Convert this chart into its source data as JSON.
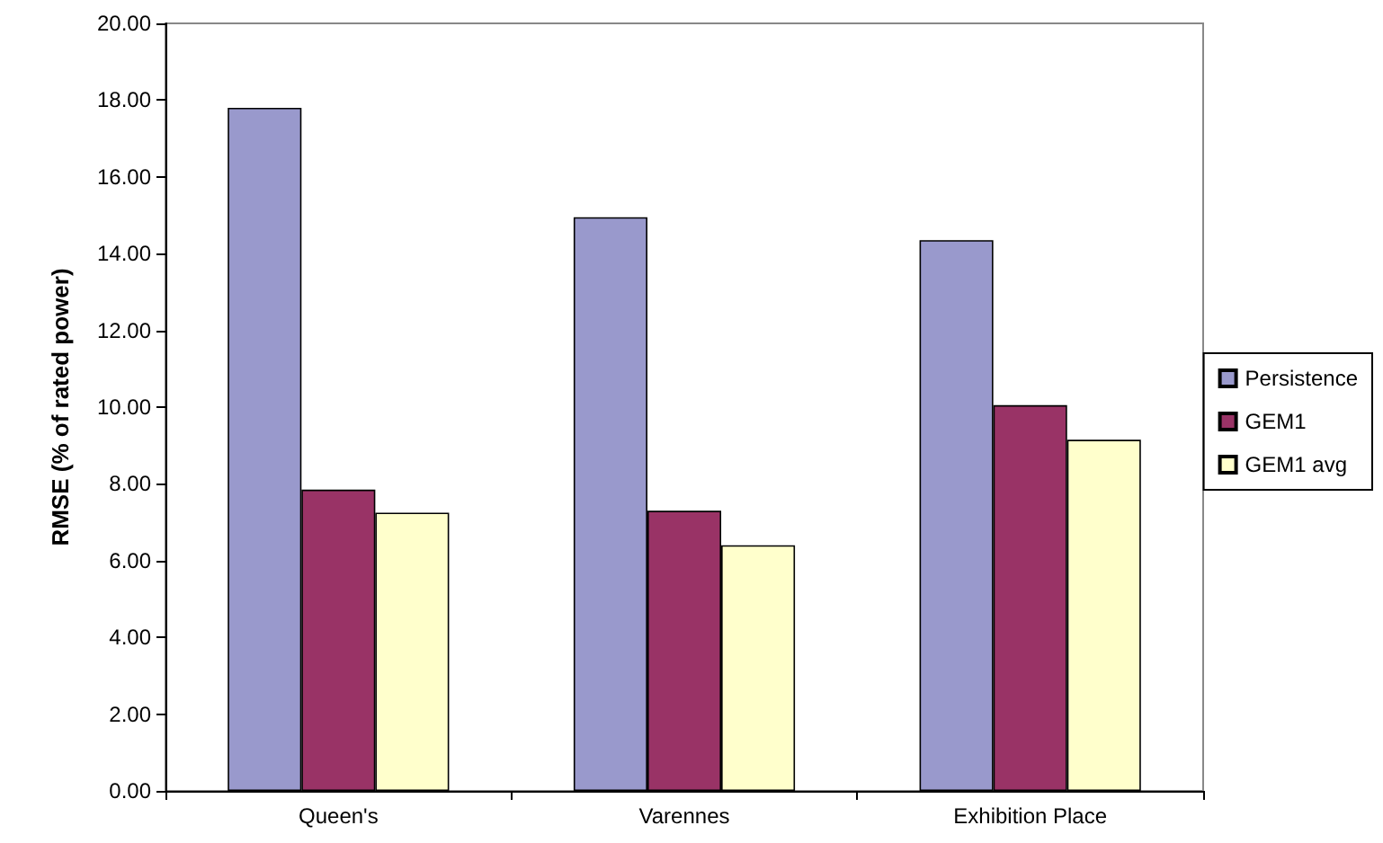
{
  "chart_data": {
    "type": "bar",
    "ylabel": "RMSE (% of rated power)",
    "categories": [
      "Queen's",
      "Varennes",
      "Exhibition Place"
    ],
    "series": [
      {
        "name": "Persistence",
        "color": "#9999cc",
        "values": [
          17.8,
          14.95,
          14.35
        ]
      },
      {
        "name": "GEM1",
        "color": "#993366",
        "values": [
          7.85,
          7.3,
          10.05
        ]
      },
      {
        "name": "GEM1 avg",
        "color": "#ffffcc",
        "values": [
          7.25,
          6.4,
          9.15
        ]
      }
    ],
    "ylim": [
      0,
      20
    ],
    "yticks": [
      {
        "value": 0,
        "label": "0.00"
      },
      {
        "value": 2,
        "label": "2.00"
      },
      {
        "value": 4,
        "label": "4.00"
      },
      {
        "value": 6,
        "label": "6.00"
      },
      {
        "value": 8,
        "label": "8.00"
      },
      {
        "value": 10,
        "label": "10.00"
      },
      {
        "value": 12,
        "label": "12.00"
      },
      {
        "value": 14,
        "label": "14.00"
      },
      {
        "value": 16,
        "label": "16.00"
      },
      {
        "value": 18,
        "label": "18.00"
      },
      {
        "value": 20,
        "label": "20.00"
      }
    ],
    "grid": false,
    "legend": "right"
  }
}
